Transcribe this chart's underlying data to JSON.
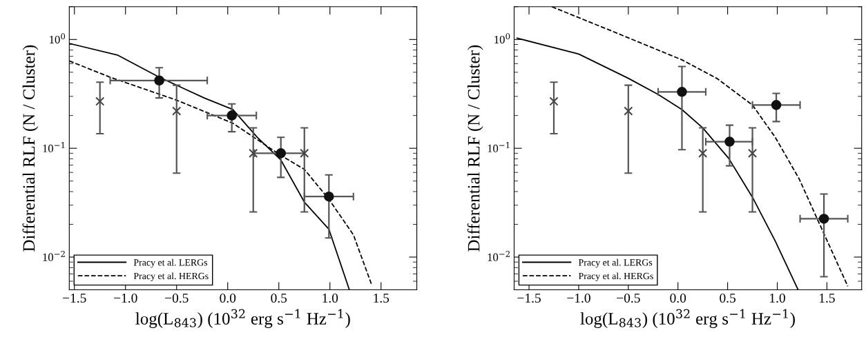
{
  "chart_data": [
    {
      "type": "scatter",
      "xlabel": "log(L$_{843}$) (10$^{32}$ erg s$^{−1}$ Hz$^{−1}$)",
      "ylabel": "Differential RLF (N / Cluster)",
      "log": "y",
      "grid": false,
      "legend": "bottom left",
      "xlim": [
        -1.55,
        1.85
      ],
      "ylim": [
        0.005,
        2
      ],
      "xticks": [
        {
          "value": -1.5,
          "label": "−1.5"
        },
        {
          "value": -1.0,
          "label": "−1.0"
        },
        {
          "value": -0.5,
          "label": "−0.5"
        },
        {
          "value": 0.0,
          "label": "0.0"
        },
        {
          "value": 0.5,
          "label": "0.5"
        },
        {
          "value": 1.0,
          "label": "1.0"
        },
        {
          "value": 1.5,
          "label": "1.5"
        }
      ],
      "yticks": [
        {
          "value": 0.01,
          "label": "10$^{−2}$"
        },
        {
          "value": 0.1,
          "label": "10$^{−1}$"
        },
        {
          "value": 1,
          "label": "10$^{0}$"
        }
      ],
      "series": [
        {
          "type": "scatter",
          "marker": "circle",
          "color": "#111111",
          "x": [
            -0.67,
            0.04,
            0.52,
            0.99
          ],
          "values": [
            0.42,
            0.2,
            0.09,
            0.036
          ],
          "errors": [
            [
              0.29,
              0.55
            ],
            [
              0.142,
              0.256
            ],
            [
              0.054,
              0.126
            ],
            [
              0.015,
              0.057
            ]
          ],
          "xerrors": [
            [
              -1.15,
              -0.2
            ],
            [
              -0.2,
              0.28
            ],
            [
              0.26,
              0.75
            ],
            [
              0.75,
              1.23
            ]
          ]
        },
        {
          "type": "scatter",
          "marker": "cross",
          "color": "#444444",
          "x": [
            -1.25,
            -0.5,
            0.25,
            0.75
          ],
          "values": [
            0.27,
            0.22,
            0.09,
            0.09
          ],
          "errors": [
            [
              0.136,
              0.405
            ],
            [
              0.059,
              0.38
            ],
            [
              0.026,
              0.154
            ],
            [
              0.026,
              0.154
            ]
          ]
        },
        {
          "type": "line",
          "name": "Pracy et al. LERGs",
          "line_style": "solid",
          "marker": "none",
          "color": "#000000",
          "x": [
            -1.55,
            -1.08,
            -0.67,
            -0.23,
            0.05,
            0.29,
            0.52,
            0.75,
            0.99,
            1.19
          ],
          "values": [
            0.92,
            0.72,
            0.45,
            0.29,
            0.227,
            0.126,
            0.078,
            0.032,
            0.018,
            0.005
          ]
        },
        {
          "type": "line",
          "name": "Pracy et al. HERGs",
          "line_style": "dashed",
          "marker": "none",
          "color": "#000000",
          "x": [
            -1.55,
            -1.15,
            -0.5,
            0.05,
            0.52,
            0.75,
            0.99,
            1.23,
            1.41
          ],
          "values": [
            0.635,
            0.45,
            0.277,
            0.17,
            0.086,
            0.064,
            0.034,
            0.016,
            0.0055
          ]
        }
      ]
    },
    {
      "type": "scatter",
      "xlabel": "log(L$_{843}$) (10$^{32}$ erg s$^{−1}$ Hz$^{−1}$)",
      "ylabel": "Differential RLF (N / Cluster)",
      "log": "y",
      "grid": false,
      "legend": "bottom left",
      "xlim": [
        -1.65,
        1.85
      ],
      "ylim": [
        0.005,
        2
      ],
      "xticks": [
        {
          "value": -1.5,
          "label": "−1.5"
        },
        {
          "value": -1.0,
          "label": "−1.0"
        },
        {
          "value": -0.5,
          "label": "−0.5"
        },
        {
          "value": 0.0,
          "label": "0.0"
        },
        {
          "value": 0.5,
          "label": "0.5"
        },
        {
          "value": 1.0,
          "label": "1.0"
        },
        {
          "value": 1.5,
          "label": "1.5"
        }
      ],
      "yticks": [
        {
          "value": 0.01,
          "label": "10$^{−2}$"
        },
        {
          "value": 0.1,
          "label": "10$^{−1}$"
        },
        {
          "value": 1,
          "label": "10$^{0}$"
        }
      ],
      "series": [
        {
          "type": "scatter",
          "marker": "circle",
          "color": "#111111",
          "x": [
            0.04,
            0.52,
            0.99,
            1.47
          ],
          "values": [
            0.33,
            0.115,
            0.25,
            0.0225
          ],
          "errors": [
            [
              0.097,
              0.565
            ],
            [
              0.069,
              0.163
            ],
            [
              0.176,
              0.32
            ],
            [
              0.0066,
              0.038
            ]
          ],
          "xerrors": [
            [
              -0.2,
              0.28
            ],
            [
              0.28,
              0.75
            ],
            [
              0.75,
              1.23
            ],
            [
              1.23,
              1.71
            ]
          ]
        },
        {
          "type": "scatter",
          "marker": "cross",
          "color": "#444444",
          "x": [
            -1.25,
            -0.5,
            0.25,
            0.75
          ],
          "values": [
            0.27,
            0.22,
            0.09,
            0.09
          ],
          "errors": [
            [
              0.136,
              0.405
            ],
            [
              0.059,
              0.38
            ],
            [
              0.026,
              0.154
            ],
            [
              0.026,
              0.154
            ]
          ]
        },
        {
          "type": "line",
          "name": "Pracy et al. LERGs",
          "line_style": "solid",
          "marker": "none",
          "color": "#000000",
          "x": [
            -1.62,
            -1.0,
            -0.5,
            -0.2,
            0.04,
            0.25,
            0.51,
            0.75,
            0.98,
            1.21
          ],
          "values": [
            1.03,
            0.735,
            0.44,
            0.313,
            0.227,
            0.154,
            0.081,
            0.0355,
            0.014,
            0.005
          ]
        },
        {
          "type": "line",
          "name": "Pracy et al. HERGs",
          "line_style": "dashed",
          "marker": "none",
          "color": "#000000",
          "x": [
            -1.27,
            -0.67,
            0.04,
            0.39,
            0.75,
            0.98,
            1.22,
            1.45,
            1.71
          ],
          "values": [
            2.0,
            1.2,
            0.65,
            0.44,
            0.25,
            0.126,
            0.0525,
            0.018,
            0.0054
          ]
        }
      ]
    }
  ]
}
